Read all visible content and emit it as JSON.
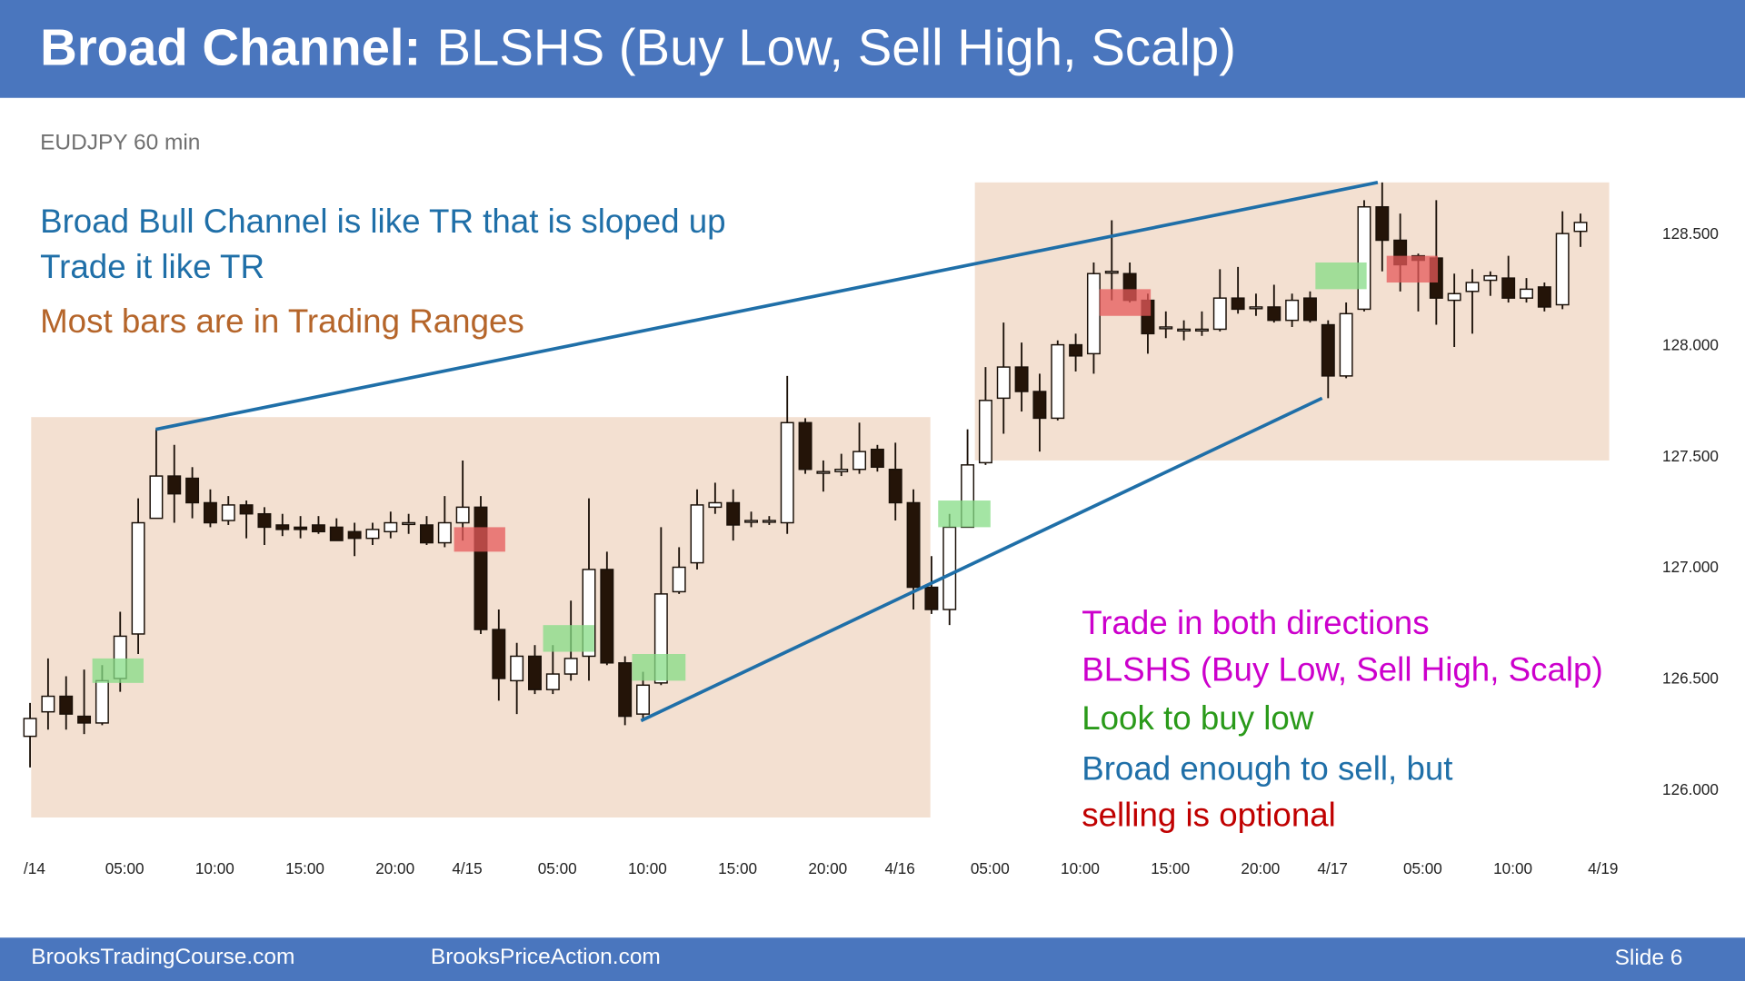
{
  "header": {
    "title_bold": "Broad Channel:",
    "title_rest": "BLSHS (Buy Low, Sell High, Scalp)"
  },
  "chart_data": {
    "type": "candlestick",
    "subtitle": "EUDJPY 60 min",
    "categories": [
      "/14",
      null,
      null,
      null,
      null,
      "05:00",
      null,
      null,
      null,
      null,
      "10:00",
      null,
      null,
      null,
      null,
      "15:00",
      null,
      null,
      null,
      null,
      "20:00",
      null,
      null,
      null,
      "4/15",
      null,
      null,
      null,
      null,
      "05:00",
      null,
      null,
      null,
      null,
      "10:00",
      null,
      null,
      null,
      null,
      "15:00",
      null,
      null,
      null,
      null,
      "20:00",
      null,
      null,
      null,
      "4/16",
      null,
      null,
      null,
      null,
      "05:00",
      null,
      null,
      null,
      null,
      "10:00",
      null,
      null,
      null,
      null,
      "15:00",
      null,
      null,
      null,
      null,
      "20:00",
      null,
      null,
      null,
      "4/17",
      null,
      null,
      null,
      null,
      "05:00",
      null,
      null,
      null,
      null,
      "10:00",
      null,
      null,
      null,
      null,
      "4/19"
    ],
    "open": [
      126.245,
      126.355,
      126.425,
      126.335,
      126.305,
      126.505,
      126.705,
      127.225,
      127.415,
      127.405,
      127.295,
      127.215,
      127.285,
      127.245,
      127.195,
      127.185,
      127.195,
      127.185,
      127.165,
      127.135,
      127.165,
      127.205,
      127.195,
      127.115,
      127.205,
      127.275,
      126.725,
      126.495,
      126.605,
      126.455,
      126.525,
      126.605,
      126.995,
      126.575,
      126.345,
      126.485,
      126.895,
      127.025,
      127.275,
      127.295,
      127.215,
      127.215,
      127.205,
      127.655,
      127.435,
      127.435,
      127.445,
      127.535,
      127.445,
      127.295,
      126.915,
      126.815,
      127.185,
      127.475,
      127.765,
      127.905,
      127.795,
      127.675,
      128.005,
      127.965,
      128.335,
      128.325,
      128.205,
      128.085,
      128.075,
      128.075,
      128.075,
      128.215,
      128.175,
      128.175,
      128.115,
      128.215,
      128.095,
      127.865,
      128.165,
      128.625,
      128.475,
      128.405,
      128.395,
      128.205,
      128.245,
      128.295,
      128.305,
      128.215,
      128.265,
      128.185,
      128.515,
      null
    ],
    "high": [
      126.395,
      126.595,
      126.515,
      126.545,
      126.565,
      126.805,
      127.315,
      127.625,
      127.555,
      127.455,
      127.355,
      127.325,
      127.305,
      127.275,
      127.245,
      127.235,
      127.235,
      127.225,
      127.205,
      127.205,
      127.255,
      127.245,
      127.235,
      127.325,
      127.485,
      127.325,
      126.815,
      126.665,
      126.655,
      126.655,
      126.855,
      127.315,
      127.075,
      126.605,
      126.535,
      127.185,
      127.095,
      127.355,
      127.385,
      127.355,
      127.255,
      127.235,
      127.865,
      127.675,
      127.485,
      127.515,
      127.655,
      127.555,
      127.565,
      127.355,
      127.055,
      127.245,
      127.625,
      127.905,
      128.105,
      128.015,
      127.875,
      128.025,
      128.055,
      128.375,
      128.565,
      128.375,
      128.235,
      128.155,
      128.115,
      128.155,
      128.345,
      128.355,
      128.235,
      128.275,
      128.235,
      128.245,
      128.115,
      128.195,
      128.655,
      128.735,
      128.595,
      128.415,
      128.655,
      128.325,
      128.345,
      128.335,
      128.405,
      128.305,
      128.285,
      128.605,
      128.595,
      null
    ],
    "low": [
      126.105,
      126.275,
      126.275,
      126.255,
      126.295,
      126.445,
      126.615,
      127.225,
      127.205,
      127.225,
      127.185,
      127.195,
      127.135,
      127.105,
      127.145,
      127.135,
      127.155,
      127.125,
      127.055,
      127.105,
      127.135,
      127.155,
      127.105,
      127.095,
      127.125,
      126.705,
      126.405,
      126.345,
      126.435,
      126.435,
      126.495,
      126.495,
      126.565,
      126.295,
      126.325,
      126.475,
      126.885,
      126.995,
      127.245,
      127.125,
      127.185,
      127.195,
      127.155,
      127.425,
      127.345,
      127.415,
      127.425,
      127.435,
      127.215,
      126.815,
      126.795,
      126.745,
      127.185,
      127.465,
      127.605,
      127.705,
      127.525,
      127.665,
      127.885,
      127.875,
      128.205,
      128.195,
      127.965,
      128.035,
      128.025,
      128.045,
      128.065,
      128.145,
      128.135,
      128.105,
      128.085,
      128.105,
      127.765,
      127.855,
      128.155,
      128.335,
      128.245,
      128.155,
      128.095,
      127.995,
      128.055,
      128.225,
      128.195,
      128.195,
      128.155,
      128.165,
      128.445,
      null
    ],
    "close": [
      126.325,
      126.425,
      126.345,
      126.305,
      126.495,
      126.695,
      127.205,
      127.415,
      127.335,
      127.295,
      127.205,
      127.285,
      127.245,
      127.185,
      127.175,
      127.175,
      127.165,
      127.125,
      127.135,
      127.175,
      127.205,
      127.205,
      127.115,
      127.205,
      127.275,
      126.725,
      126.505,
      126.605,
      126.455,
      126.525,
      126.595,
      126.995,
      126.575,
      126.335,
      126.475,
      126.885,
      127.005,
      127.285,
      127.295,
      127.195,
      127.215,
      127.215,
      127.655,
      127.445,
      127.435,
      127.445,
      127.525,
      127.455,
      127.295,
      126.915,
      126.815,
      127.185,
      127.465,
      127.755,
      127.905,
      127.795,
      127.675,
      128.005,
      127.955,
      128.325,
      128.335,
      128.205,
      128.055,
      128.085,
      128.075,
      128.075,
      128.215,
      128.165,
      128.175,
      128.115,
      128.205,
      128.115,
      127.865,
      128.145,
      128.625,
      128.475,
      128.365,
      128.385,
      128.215,
      128.235,
      128.285,
      128.315,
      128.215,
      128.255,
      128.175,
      128.505,
      128.555,
      null
    ],
    "up_color": "#ffffff",
    "down_color": "#241408",
    "ylim": [
      125.8,
      128.8
    ],
    "yticks": [
      {
        "value": 126,
        "label": "126.000"
      },
      {
        "value": 126.5,
        "label": "126.500"
      },
      {
        "value": 127,
        "label": "127.000"
      },
      {
        "value": 127.5,
        "label": "127.500"
      },
      {
        "value": 128,
        "label": "128.000"
      },
      {
        "value": 128.5,
        "label": "128.500"
      }
    ],
    "annotations": [
      {
        "text": "Broad Bull Channel is like TR that is sloped up",
        "color": "#1f6fa8"
      },
      {
        "text": "Trade it like TR",
        "color": "#1f6fa8"
      },
      {
        "text": "Most bars are in Trading Ranges",
        "color": "#b5652a"
      },
      {
        "text": "Trade in both directions",
        "color": "#cc00cc"
      },
      {
        "text": "BLSHS (Buy Low, Sell High, Scalp)",
        "color": "#cc00cc"
      },
      {
        "text": "Look to buy low",
        "color": "#2a9a1a"
      },
      {
        "text": "Broad enough to sell, but",
        "color": "#1f6fa8"
      },
      {
        "text": "selling is optional",
        "color": "#c00000"
      }
    ]
  },
  "footer": {
    "left": "BrooksTradingCourse.com",
    "center": "BrooksPriceAction.com",
    "slide": "Slide  6"
  }
}
